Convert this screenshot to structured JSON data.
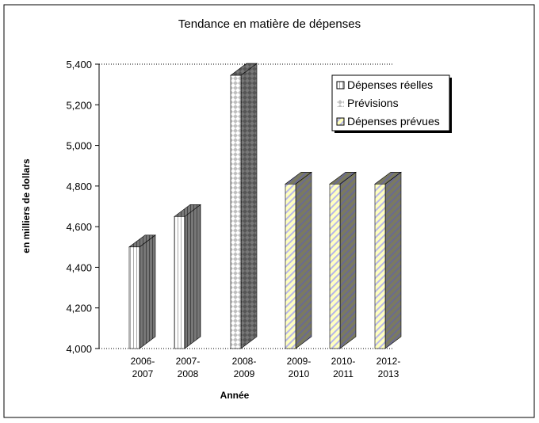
{
  "chart_data": {
    "type": "bar",
    "title": "Tendance en matière de dépenses",
    "xlabel": "Année",
    "ylabel": "en milliers de dollars",
    "categories": [
      [
        "2006-",
        "2007"
      ],
      [
        "2007-",
        "2008"
      ],
      [
        "2008-",
        "2009"
      ],
      [
        "2009-",
        "2010"
      ],
      [
        "2010-",
        "2011"
      ],
      [
        "2012-",
        "2013"
      ]
    ],
    "values": [
      4500,
      4650,
      5345,
      4810,
      4810,
      4810
    ],
    "series_of_bar": [
      0,
      0,
      1,
      2,
      2,
      2
    ],
    "legend": [
      "Dépenses réelles",
      "Prévisions",
      "Dépenses prévues"
    ],
    "legend_position": "top-right",
    "ylim": [
      4000,
      5400
    ],
    "yticks": [
      4000,
      4200,
      4400,
      4600,
      4800,
      5000,
      5200,
      5400
    ],
    "ytick_labels": [
      "4,000",
      "4,200",
      "4,400",
      "4,600",
      "4,800",
      "5,000",
      "5,200",
      "5,400"
    ],
    "grid": "dotted lines at min and max only",
    "three_d": true
  }
}
